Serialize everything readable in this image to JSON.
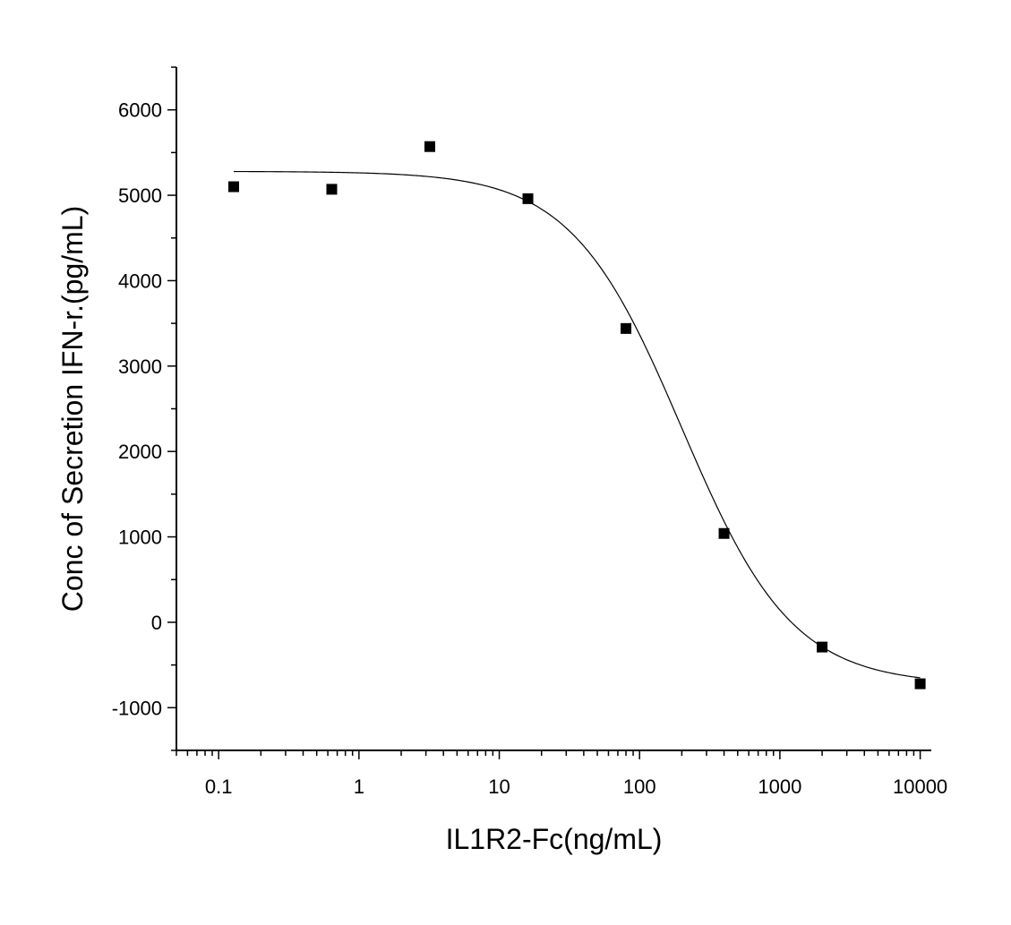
{
  "chart_data": {
    "type": "scatter",
    "title": "",
    "xlabel": "IL1R2-Fc(ng/mL)",
    "ylabel": "Conc of Secretion IFN-r.(pg/mL)",
    "xscale": "log",
    "xlim": [
      0.05,
      12000
    ],
    "ylim": [
      -1500,
      6500
    ],
    "x_ticks": [
      0.1,
      1,
      10,
      100,
      1000,
      10000
    ],
    "x_tick_labels": [
      "0.1",
      "1",
      "10",
      "100",
      "1000",
      "10000"
    ],
    "y_ticks": [
      -1000,
      0,
      1000,
      2000,
      3000,
      4000,
      5000,
      6000
    ],
    "y_tick_labels": [
      "-1000",
      "0",
      "1000",
      "2000",
      "3000",
      "4000",
      "5000",
      "6000"
    ],
    "grid": false,
    "legend": "none",
    "series": [
      {
        "marker": "square",
        "color": "#000000",
        "x": [
          0.128,
          0.64,
          3.2,
          16,
          80,
          400,
          2000,
          10000
        ],
        "y": [
          5100,
          5070,
          5570,
          4960,
          3440,
          1040,
          -290,
          -720
        ]
      }
    ],
    "fit_curve": {
      "model": "4PL",
      "color": "#000000",
      "top": 5280,
      "bottom": -730,
      "ec50": 200,
      "hill": 1.1,
      "x_range": [
        0.128,
        10000
      ]
    }
  }
}
